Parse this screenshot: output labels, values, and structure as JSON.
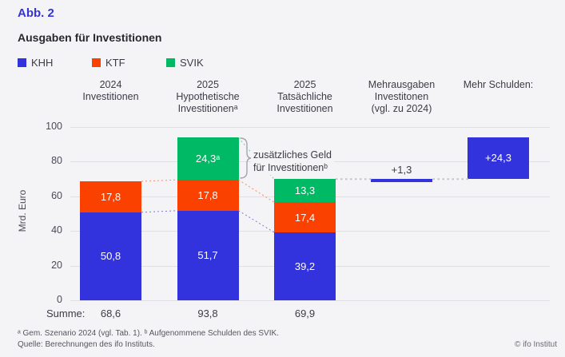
{
  "figure_label": "Abb. 2",
  "title": "Ausgaben für Investitionen",
  "legend": [
    {
      "label": "KHH",
      "color": "#3333dd"
    },
    {
      "label": "KTF",
      "color": "#fa4100"
    },
    {
      "label": "SVIK",
      "color": "#00b964"
    }
  ],
  "column_headers": [
    "2024\nInvestitionen",
    "2025\nHypothetische\nInvestitionenᵃ",
    "2025\nTatsächliche\nInvestitionen",
    "Mehrausgaben\nInvestitonen\n(vgl. zu 2024)",
    "Mehr Schulden:"
  ],
  "annotation": "zusätzliches Geld\nfür Investitionenᵇ",
  "chart_data": {
    "type": "bar",
    "stacked": true,
    "title": "Ausgaben für Investitionen",
    "ylabel": "Mrd. Euro",
    "ylim": [
      0,
      100
    ],
    "yticks": [
      0,
      20,
      40,
      60,
      80,
      100
    ],
    "grid": "horizontal",
    "categories": [
      "2024 Investitionen",
      "2025 Hypothetische Investitionenᵃ",
      "2025 Tatsächliche Investitionen",
      "Mehrausgaben Investitonen (vgl. zu 2024)",
      "Mehr Schulden:"
    ],
    "series": [
      {
        "name": "KHH",
        "color": "#3333dd",
        "values": [
          50.8,
          51.7,
          39.2,
          null,
          null
        ]
      },
      {
        "name": "KTF",
        "color": "#fa4100",
        "values": [
          17.8,
          17.8,
          17.4,
          null,
          null
        ]
      },
      {
        "name": "SVIK",
        "color": "#00b964",
        "values": [
          null,
          24.3,
          13.3,
          null,
          null
        ]
      }
    ],
    "segment_labels": [
      [
        "50,8",
        "17,8",
        null
      ],
      [
        "51,7",
        "17,8",
        "24,3ᵃ"
      ],
      [
        "39,2",
        "17,4",
        "13,3"
      ]
    ],
    "floating_bars": [
      {
        "category_index": 3,
        "from": 68.6,
        "to": 69.9,
        "label": "+1,3",
        "color": "#3333dd",
        "label_position": "above"
      },
      {
        "category_index": 4,
        "from": 69.9,
        "to": 94.2,
        "label": "+24,3",
        "color": "#3333dd",
        "label_position": "inside"
      }
    ],
    "totals": {
      "label": "Summe:",
      "values": [
        "68,6",
        "93,8",
        "69,9"
      ]
    }
  },
  "footnotes": {
    "line1": "ᵃ Gem. Szenario 2024 (vgl. Tab. 1). ᵇ Aufgenommene Schulden des SVIK.",
    "line2": "Quelle: Berechnungen des ifo Instituts."
  },
  "copyright": "© ifo Institut"
}
